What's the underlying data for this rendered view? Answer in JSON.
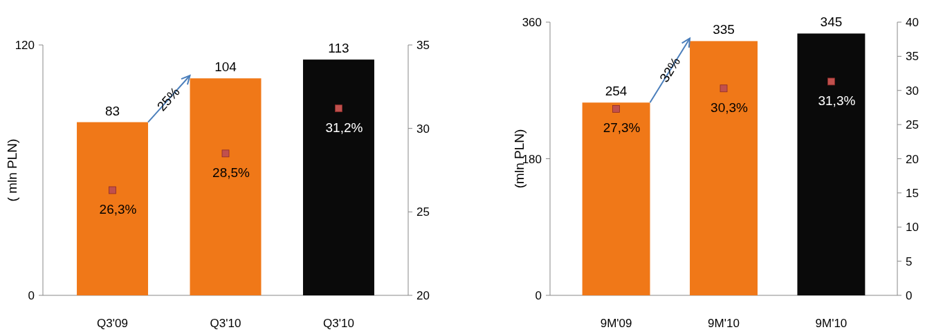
{
  "chart_data": [
    {
      "type": "bar",
      "ylabel": "( mln PLN)",
      "categories": [
        "Q3'09",
        "Q3'10",
        "Q3'10"
      ],
      "series": [
        {
          "type": "bar",
          "colors": [
            "#f07818",
            "#f07818",
            "#0a0a0a"
          ],
          "values": [
            83,
            104,
            113
          ],
          "value_labels": [
            "83",
            "104",
            "113"
          ]
        },
        {
          "type": "scatter",
          "axis": "y2",
          "color": "#c0504d",
          "marker": "square",
          "values": [
            26.3,
            28.5,
            31.2
          ],
          "value_labels": [
            "26,3%",
            "28,5%",
            "31,2%"
          ]
        }
      ],
      "ylim": [
        0,
        120
      ],
      "yticks": [
        0,
        120
      ],
      "y2lim": [
        20,
        35
      ],
      "y2ticks": [
        20,
        25,
        30,
        35
      ],
      "annotations": [
        "25%"
      ]
    },
    {
      "type": "bar",
      "ylabel": "(mln PLN)",
      "categories": [
        "9M'09",
        "9M'10",
        "9M'10"
      ],
      "series": [
        {
          "type": "bar",
          "colors": [
            "#f07818",
            "#f07818",
            "#0a0a0a"
          ],
          "values": [
            254,
            335,
            345
          ],
          "value_labels": [
            "254",
            "335",
            "345"
          ]
        },
        {
          "type": "scatter",
          "axis": "y2",
          "color": "#c0504d",
          "marker": "square",
          "values": [
            27.3,
            30.3,
            31.3
          ],
          "value_labels": [
            "27,3%",
            "30,3%",
            "31,3%"
          ]
        }
      ],
      "ylim": [
        0,
        360
      ],
      "yticks": [
        0,
        180,
        360
      ],
      "y2lim": [
        0,
        40
      ],
      "y2ticks": [
        0,
        5,
        10,
        15,
        20,
        25,
        30,
        35,
        40
      ],
      "annotations": [
        "32%"
      ]
    }
  ]
}
